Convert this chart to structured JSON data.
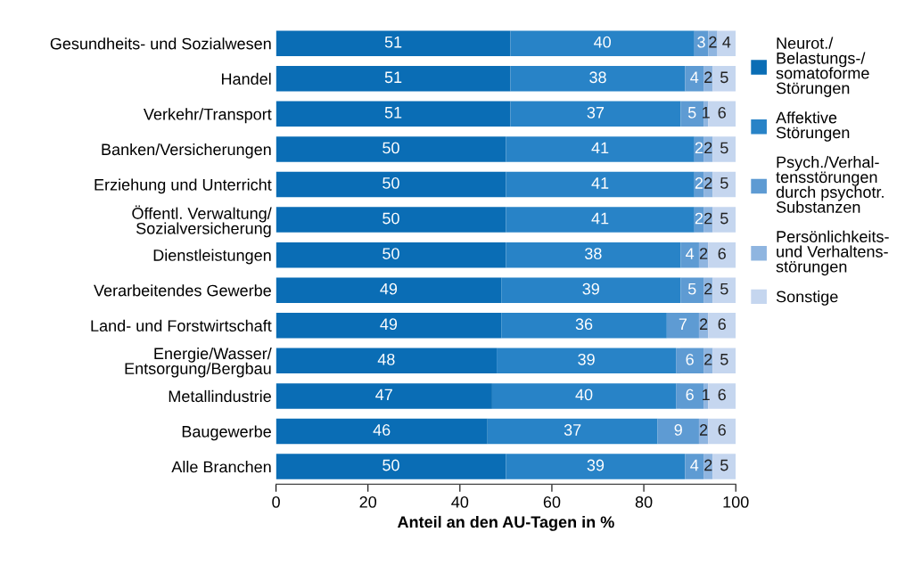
{
  "chart_data": {
    "type": "bar",
    "orientation": "horizontal",
    "stacked": true,
    "data_labels": true,
    "legend": "right",
    "grid": false,
    "xlabel": "Anteil an den AU-Tagen in %",
    "xlim": [
      0,
      100
    ],
    "xticks": [
      0,
      20,
      40,
      60,
      80,
      100
    ],
    "categories": [
      "Gesundheits- und Sozialwesen",
      "Handel",
      "Verkehr/Transport",
      "Banken/Versicherungen",
      "Erziehung und Unterricht",
      "Öffentl. Verwaltung/\nSozialversicherung",
      "Dienstleistungen",
      "Verarbeitendes Gewerbe",
      "Land- und Forstwirtschaft",
      "Energie/Wasser/\nEntsorgung/Bergbau",
      "Metallindustrie",
      "Baugewerbe",
      "Alle Branchen"
    ],
    "series": [
      {
        "name": "Neurot./\nBelastungs-/\nsomatoforme\nStörungen",
        "color": "#0a6db5",
        "values": [
          51,
          51,
          51,
          50,
          50,
          50,
          50,
          49,
          49,
          48,
          47,
          46,
          50
        ]
      },
      {
        "name": "Affektive\nStörungen",
        "color": "#2883c7",
        "values": [
          40,
          38,
          37,
          41,
          41,
          41,
          38,
          39,
          36,
          39,
          40,
          37,
          39
        ]
      },
      {
        "name": "Psych./Verhal-\ntensstörungen\ndurch psychotr.\nSubstanzen",
        "color": "#5e9bd3",
        "values": [
          3,
          4,
          5,
          2,
          2,
          2,
          4,
          5,
          7,
          6,
          6,
          9,
          4
        ]
      },
      {
        "name": "Persönlichkeits-\nund Verhaltens-\nstörungen",
        "color": "#8fb5e0",
        "values": [
          2,
          2,
          1,
          2,
          2,
          2,
          2,
          2,
          2,
          2,
          1,
          2,
          2
        ]
      },
      {
        "name": "Sonstige",
        "color": "#c5d6ef",
        "values": [
          4,
          5,
          6,
          5,
          5,
          5,
          6,
          5,
          6,
          5,
          6,
          6,
          5
        ]
      }
    ]
  }
}
